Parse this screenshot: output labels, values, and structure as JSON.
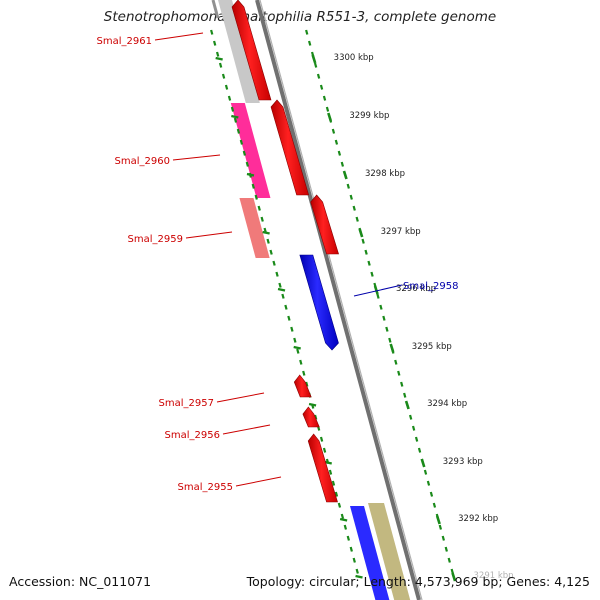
{
  "header": {
    "title": "Stenotrophomonas maltophilia R551-3, complete genome"
  },
  "footer": {
    "accession": "Accession: NC_011071",
    "summary": "Topology: circular; Length: 4,573,969 bp; Genes: 4,125"
  },
  "colors": {
    "forward_gene": "#ff0000",
    "reverse_gene": "#0000ee",
    "label_forward": "#cc0000",
    "label_reverse": "#0000aa",
    "tick": "#1a8a1a",
    "backbone": "#888888",
    "band_grey": "#c8c8c8",
    "band_magenta": "#ff2d9a",
    "band_salmon": "#f07a7a",
    "band_blue": "#2a2aff",
    "band_khaki": "#c2b880"
  },
  "scale": {
    "tick_labels": [
      "3300 kbp",
      "3299 kbp",
      "3298 kbp",
      "3297 kbp",
      "3296 kbp",
      "3295 kbp",
      "3294 kbp",
      "3293 kbp",
      "3292 kbp",
      "3291 kbp"
    ]
  },
  "genes": [
    {
      "name": "Smal_2961",
      "strand": "forward"
    },
    {
      "name": "Smal_2960",
      "strand": "forward"
    },
    {
      "name": "Smal_2959",
      "strand": "forward"
    },
    {
      "name": "Smal_2958",
      "strand": "reverse"
    },
    {
      "name": "Smal_2957",
      "strand": "forward"
    },
    {
      "name": "Smal_2956",
      "strand": "forward"
    },
    {
      "name": "Smal_2955",
      "strand": "forward"
    }
  ]
}
